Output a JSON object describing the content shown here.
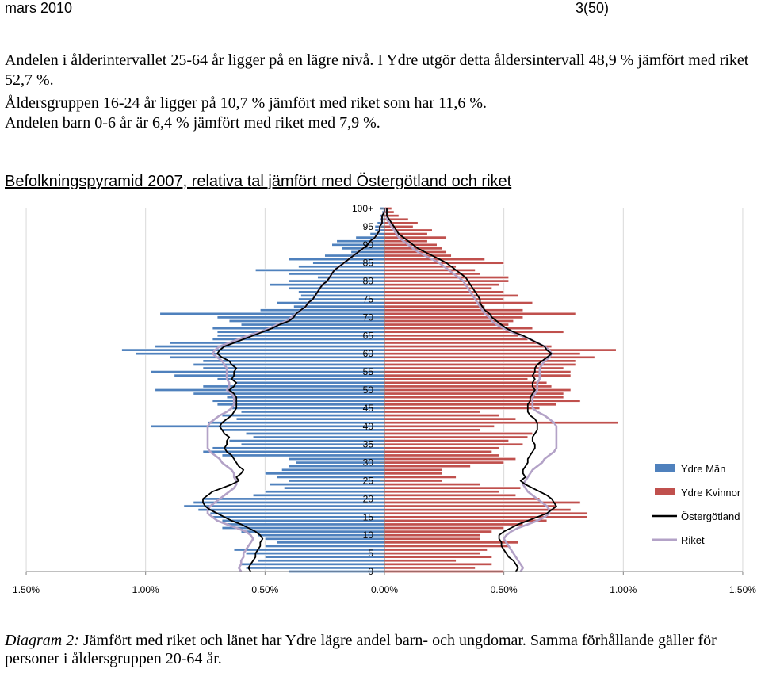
{
  "header": {
    "date": "mars 2010",
    "page": "3(50)"
  },
  "intro": {
    "p1": "Andelen i ålderintervallet 25-64 år ligger på en lägre nivå. I Ydre utgör detta åldersintervall 48,9 % jämfört med riket 52,7 %.",
    "p2": "Åldersgruppen 16-24 år ligger på 10,7 % jämfört med riket som har 11,6 %.",
    "p3": "Andelen barn 0-6 år är 6,4 % jämfört med riket med 7,9 %."
  },
  "caption": {
    "label": "Diagram 2:",
    "text": " Jämfört med riket och länet har Ydre lägre andel barn- och ungdomar. Samma förhållande gäller för personer i åldersgruppen 20-64 år."
  },
  "chart_data": {
    "type": "bar",
    "title": "Befolkningspyramid 2007, relativa tal jämfört med Östergötland och riket",
    "orientation": "horizontal-pyramid",
    "x_tick_labels": [
      "1.50%",
      "1.00%",
      "0.50%",
      "0.00%",
      "0.50%",
      "1.00%",
      "1.50%"
    ],
    "xlim": [
      -1.5,
      1.5
    ],
    "y_tick_labels": [
      "0",
      "5",
      "10",
      "15",
      "20",
      "25",
      "30",
      "35",
      "40",
      "45",
      "50",
      "55",
      "60",
      "65",
      "70",
      "75",
      "80",
      "85",
      "90",
      "95",
      "100+"
    ],
    "ages": [
      0,
      1,
      2,
      3,
      4,
      5,
      6,
      7,
      8,
      9,
      10,
      11,
      12,
      13,
      14,
      15,
      16,
      17,
      18,
      19,
      20,
      21,
      22,
      23,
      24,
      25,
      26,
      27,
      28,
      29,
      30,
      31,
      32,
      33,
      34,
      35,
      36,
      37,
      38,
      39,
      40,
      41,
      42,
      43,
      44,
      45,
      46,
      47,
      48,
      49,
      50,
      51,
      52,
      53,
      54,
      55,
      56,
      57,
      58,
      59,
      60,
      61,
      62,
      63,
      64,
      65,
      66,
      67,
      68,
      69,
      70,
      71,
      72,
      73,
      74,
      75,
      76,
      77,
      78,
      79,
      80,
      81,
      82,
      83,
      84,
      85,
      86,
      87,
      88,
      89,
      90,
      91,
      92,
      93,
      94,
      95,
      96,
      97,
      98,
      99,
      100
    ],
    "legend_position": "right",
    "series": [
      {
        "name": "Ydre Män",
        "color": "#4f81bd",
        "values": [
          -0.4,
          -0.58,
          -0.6,
          -0.53,
          -0.5,
          -0.58,
          -0.63,
          -0.5,
          -0.45,
          -0.5,
          -0.53,
          -0.6,
          -0.68,
          -0.66,
          -0.68,
          -0.72,
          -0.73,
          -0.78,
          -0.84,
          -0.8,
          -0.76,
          -0.55,
          -0.5,
          -0.42,
          -0.48,
          -0.4,
          -0.45,
          -0.5,
          -0.43,
          -0.4,
          -0.37,
          -0.4,
          -0.68,
          -0.76,
          -0.72,
          -0.6,
          -0.65,
          -0.55,
          -0.58,
          -0.68,
          -0.98,
          -0.74,
          -0.62,
          -0.68,
          -0.6,
          -0.64,
          -0.7,
          -0.72,
          -0.66,
          -0.8,
          -0.96,
          -0.76,
          -0.62,
          -0.7,
          -0.88,
          -0.98,
          -0.76,
          -0.8,
          -0.76,
          -0.9,
          -1.04,
          -1.1,
          -0.96,
          -0.9,
          -0.72,
          -0.7,
          -0.7,
          -0.72,
          -0.6,
          -0.65,
          -0.7,
          -0.94,
          -0.52,
          -0.38,
          -0.45,
          -0.36,
          -0.35,
          -0.36,
          -0.4,
          -0.48,
          -0.4,
          -0.28,
          -0.4,
          -0.54,
          -0.36,
          -0.3,
          -0.4,
          -0.25,
          -0.14,
          -0.18,
          -0.22,
          -0.2,
          -0.12,
          -0.06,
          -0.04,
          -0.04,
          -0.03,
          -0.02,
          -0.02,
          -0.01,
          -0.02
        ]
      },
      {
        "name": "Ydre Kvinnor",
        "color": "#c0504d",
        "values": [
          0.5,
          0.38,
          0.45,
          0.3,
          0.45,
          0.4,
          0.43,
          0.52,
          0.56,
          0.4,
          0.4,
          0.45,
          0.5,
          0.58,
          0.68,
          0.85,
          0.85,
          0.78,
          0.72,
          0.82,
          0.65,
          0.55,
          0.48,
          0.57,
          0.4,
          0.24,
          0.3,
          0.24,
          0.24,
          0.36,
          0.5,
          0.55,
          0.48,
          0.45,
          0.48,
          0.58,
          0.52,
          0.6,
          0.62,
          0.4,
          0.46,
          0.98,
          0.55,
          0.48,
          0.4,
          0.65,
          0.72,
          0.82,
          0.75,
          0.75,
          0.78,
          0.7,
          0.68,
          0.6,
          0.78,
          0.78,
          0.75,
          0.8,
          0.8,
          0.88,
          0.82,
          0.97,
          0.7,
          0.65,
          0.6,
          0.56,
          0.75,
          0.62,
          0.52,
          0.54,
          0.58,
          0.8,
          0.58,
          0.42,
          0.62,
          0.5,
          0.56,
          0.5,
          0.45,
          0.48,
          0.52,
          0.52,
          0.4,
          0.38,
          0.3,
          0.5,
          0.42,
          0.28,
          0.26,
          0.24,
          0.22,
          0.18,
          0.26,
          0.18,
          0.2,
          0.12,
          0.14,
          0.1,
          0.06,
          0.04,
          0.03
        ]
      },
      {
        "name": "Östergötland",
        "color": "#000000",
        "values_left": [
          -0.56,
          -0.57,
          -0.56,
          -0.55,
          -0.54,
          -0.54,
          -0.53,
          -0.52,
          -0.52,
          -0.51,
          -0.52,
          -0.54,
          -0.57,
          -0.6,
          -0.64,
          -0.67,
          -0.7,
          -0.73,
          -0.75,
          -0.76,
          -0.76,
          -0.74,
          -0.72,
          -0.68,
          -0.64,
          -0.61,
          -0.62,
          -0.6,
          -0.59,
          -0.61,
          -0.62,
          -0.63,
          -0.64,
          -0.66,
          -0.67,
          -0.66,
          -0.66,
          -0.65,
          -0.67,
          -0.68,
          -0.69,
          -0.68,
          -0.66,
          -0.64,
          -0.63,
          -0.62,
          -0.62,
          -0.62,
          -0.62,
          -0.63,
          -0.65,
          -0.63,
          -0.62,
          -0.64,
          -0.63,
          -0.63,
          -0.62,
          -0.64,
          -0.65,
          -0.68,
          -0.7,
          -0.69,
          -0.67,
          -0.63,
          -0.59,
          -0.55,
          -0.51,
          -0.47,
          -0.44,
          -0.4,
          -0.38,
          -0.37,
          -0.35,
          -0.33,
          -0.32,
          -0.3,
          -0.29,
          -0.28,
          -0.27,
          -0.26,
          -0.24,
          -0.23,
          -0.22,
          -0.21,
          -0.19,
          -0.17,
          -0.15,
          -0.13,
          -0.11,
          -0.09,
          -0.07,
          -0.06,
          -0.04,
          -0.03,
          -0.02,
          -0.02,
          -0.01,
          -0.01,
          -0.01,
          0,
          0
        ],
        "values_right": [
          0.55,
          0.56,
          0.55,
          0.54,
          0.52,
          0.51,
          0.5,
          0.49,
          0.49,
          0.48,
          0.48,
          0.5,
          0.53,
          0.56,
          0.6,
          0.64,
          0.68,
          0.7,
          0.72,
          0.71,
          0.7,
          0.68,
          0.65,
          0.62,
          0.59,
          0.57,
          0.59,
          0.58,
          0.58,
          0.59,
          0.6,
          0.6,
          0.61,
          0.62,
          0.63,
          0.63,
          0.62,
          0.62,
          0.63,
          0.64,
          0.64,
          0.64,
          0.63,
          0.61,
          0.6,
          0.6,
          0.6,
          0.61,
          0.61,
          0.62,
          0.63,
          0.62,
          0.62,
          0.63,
          0.62,
          0.63,
          0.63,
          0.64,
          0.66,
          0.68,
          0.7,
          0.68,
          0.67,
          0.64,
          0.61,
          0.58,
          0.54,
          0.51,
          0.49,
          0.47,
          0.45,
          0.44,
          0.42,
          0.41,
          0.4,
          0.4,
          0.39,
          0.38,
          0.37,
          0.36,
          0.35,
          0.34,
          0.32,
          0.3,
          0.28,
          0.26,
          0.23,
          0.2,
          0.17,
          0.14,
          0.12,
          0.1,
          0.08,
          0.06,
          0.05,
          0.04,
          0.03,
          0.02,
          0.01,
          0.01,
          0.01
        ]
      },
      {
        "name": "Riket",
        "color": "#b3a2c7",
        "values_left": [
          -0.6,
          -0.61,
          -0.6,
          -0.6,
          -0.59,
          -0.59,
          -0.58,
          -0.57,
          -0.56,
          -0.55,
          -0.56,
          -0.58,
          -0.62,
          -0.66,
          -0.7,
          -0.72,
          -0.74,
          -0.74,
          -0.73,
          -0.71,
          -0.69,
          -0.67,
          -0.65,
          -0.63,
          -0.62,
          -0.62,
          -0.63,
          -0.63,
          -0.64,
          -0.66,
          -0.68,
          -0.69,
          -0.71,
          -0.73,
          -0.74,
          -0.74,
          -0.74,
          -0.74,
          -0.74,
          -0.74,
          -0.74,
          -0.73,
          -0.71,
          -0.69,
          -0.66,
          -0.64,
          -0.63,
          -0.63,
          -0.63,
          -0.64,
          -0.66,
          -0.65,
          -0.65,
          -0.66,
          -0.66,
          -0.66,
          -0.66,
          -0.67,
          -0.68,
          -0.7,
          -0.72,
          -0.71,
          -0.69,
          -0.65,
          -0.61,
          -0.57,
          -0.52,
          -0.48,
          -0.45,
          -0.41,
          -0.39,
          -0.37,
          -0.35,
          -0.33,
          -0.32,
          -0.3,
          -0.29,
          -0.28,
          -0.27,
          -0.26,
          -0.24,
          -0.23,
          -0.22,
          -0.21,
          -0.19,
          -0.17,
          -0.15,
          -0.13,
          -0.11,
          -0.09,
          -0.07,
          -0.06,
          -0.04,
          -0.03,
          -0.02,
          -0.02,
          -0.01,
          -0.01,
          -0.01,
          0,
          0
        ],
        "values_right": [
          0.57,
          0.58,
          0.57,
          0.56,
          0.55,
          0.54,
          0.53,
          0.52,
          0.51,
          0.5,
          0.51,
          0.53,
          0.56,
          0.6,
          0.64,
          0.67,
          0.69,
          0.69,
          0.68,
          0.66,
          0.64,
          0.62,
          0.6,
          0.59,
          0.58,
          0.59,
          0.6,
          0.61,
          0.62,
          0.64,
          0.66,
          0.67,
          0.69,
          0.71,
          0.72,
          0.72,
          0.72,
          0.72,
          0.72,
          0.72,
          0.72,
          0.71,
          0.69,
          0.67,
          0.64,
          0.62,
          0.62,
          0.62,
          0.62,
          0.63,
          0.64,
          0.64,
          0.64,
          0.65,
          0.65,
          0.65,
          0.65,
          0.66,
          0.67,
          0.69,
          0.7,
          0.69,
          0.67,
          0.64,
          0.61,
          0.57,
          0.53,
          0.5,
          0.47,
          0.45,
          0.44,
          0.42,
          0.41,
          0.4,
          0.39,
          0.38,
          0.37,
          0.36,
          0.35,
          0.34,
          0.33,
          0.31,
          0.29,
          0.27,
          0.25,
          0.23,
          0.2,
          0.17,
          0.14,
          0.12,
          0.1,
          0.08,
          0.06,
          0.05,
          0.04,
          0.03,
          0.02,
          0.01,
          0.01,
          0.01,
          0.01
        ]
      }
    ]
  }
}
